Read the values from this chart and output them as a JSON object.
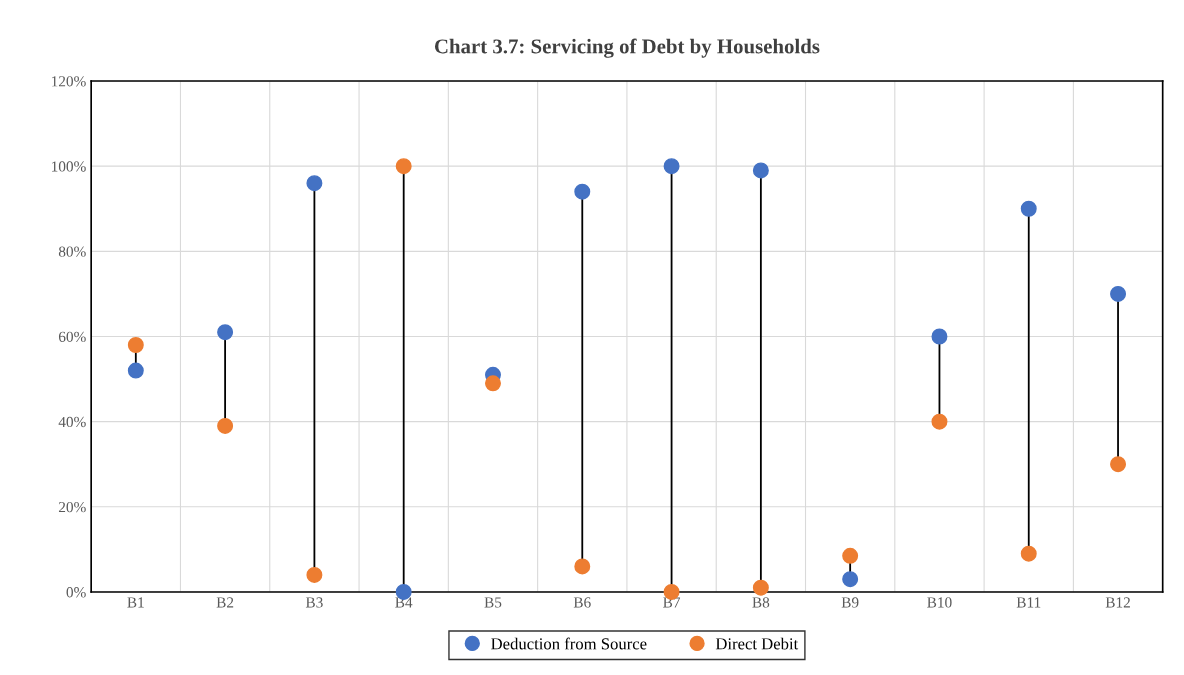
{
  "chart_data": {
    "type": "scatter",
    "title": "Chart 3.7: Servicing of Debt by Households",
    "categories": [
      "B1",
      "B2",
      "B3",
      "B4",
      "B5",
      "B6",
      "B7",
      "B8",
      "B9",
      "B10",
      "B11",
      "B12"
    ],
    "series": [
      {
        "name": "Deduction from Source",
        "color": "#4472c4",
        "values": [
          52,
          61,
          96,
          0,
          51,
          94,
          100,
          99,
          3,
          60,
          90,
          70
        ]
      },
      {
        "name": "Direct Debit",
        "color": "#ed7d31",
        "values": [
          58,
          39,
          4,
          100,
          49,
          6,
          0,
          1,
          8.5,
          40,
          9,
          30
        ]
      }
    ],
    "ylim": [
      0,
      120
    ],
    "yticks": [
      {
        "value": 0,
        "label": "0%"
      },
      {
        "value": 20,
        "label": "20%"
      },
      {
        "value": 40,
        "label": "40%"
      },
      {
        "value": 60,
        "label": "60%"
      },
      {
        "value": 80,
        "label": "80%"
      },
      {
        "value": 100,
        "label": "100%"
      },
      {
        "value": 120,
        "label": "120%"
      }
    ],
    "grid": true,
    "legend": "bottom",
    "marker": "circle"
  }
}
